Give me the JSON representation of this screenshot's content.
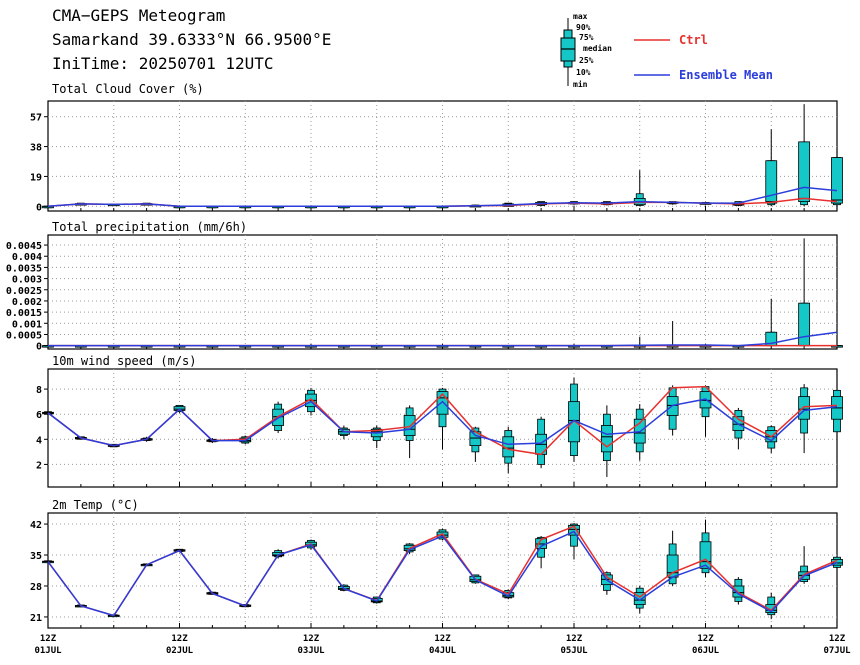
{
  "header": {
    "title": "CMA−GEPS Meteogram",
    "location": "Samarkand 39.6333°N 66.9500°E",
    "initime": "IniTime: 20250701 12UTC"
  },
  "boxlegend": {
    "max": "max",
    "p90": "90%",
    "p75": "75%",
    "median": "median",
    "p25": "25%",
    "p10": "10%",
    "min": "min"
  },
  "legend": [
    {
      "name": "Ctrl",
      "color": "#e8312f"
    },
    {
      "name": "Ensemble Mean",
      "color": "#2b3ddb"
    }
  ],
  "colors": {
    "box": "#16c7c7",
    "ctrl": "#e8312f",
    "mean": "#2b3ddb",
    "grid": "#9a9a9a"
  },
  "xaxis": {
    "labels": [
      [
        "12Z",
        "01JUL"
      ],
      [
        "12Z",
        "02JUL"
      ],
      [
        "12Z",
        "03JUL"
      ],
      [
        "12Z",
        "04JUL"
      ],
      [
        "12Z",
        "05JUL"
      ],
      [
        "12Z",
        "06JUL"
      ],
      [
        "12Z",
        "07JUL"
      ]
    ]
  },
  "chart_data": [
    {
      "type": "box",
      "title": "Total Cloud Cover (%)",
      "ylim": [
        -3,
        67
      ],
      "yticks": [
        0,
        19,
        38,
        57
      ],
      "ticklabels": [
        "0",
        "19",
        "38",
        "57"
      ],
      "x": [
        0,
        1,
        2,
        3,
        4,
        5,
        6,
        7,
        8,
        9,
        10,
        11,
        12,
        13,
        14,
        15,
        16,
        17,
        18,
        19,
        20,
        21,
        22,
        23,
        24
      ],
      "ctrl": [
        0,
        1.5,
        1.2,
        1.5,
        0,
        0,
        0,
        0,
        0,
        0,
        0,
        0,
        0,
        0.3,
        0.5,
        1.5,
        2,
        1.5,
        2.5,
        2.5,
        2,
        1.5,
        2.5,
        5,
        3
      ],
      "mean": [
        0,
        1.5,
        1.2,
        1.5,
        0,
        0,
        0,
        0,
        0,
        0,
        0,
        0,
        0,
        0.3,
        0.8,
        1.8,
        2.2,
        2,
        3,
        2.5,
        2,
        2,
        7,
        12,
        10
      ],
      "boxes": [
        [
          0,
          0,
          0,
          0,
          0,
          0,
          0
        ],
        [
          1,
          1,
          1.3,
          1.5,
          1.7,
          2,
          2
        ],
        [
          1,
          1,
          1.1,
          1.2,
          1.3,
          1.4,
          1.4
        ],
        [
          1,
          1,
          1.3,
          1.5,
          1.7,
          2,
          2
        ],
        [
          0,
          0,
          0,
          0,
          0,
          0,
          0
        ],
        [
          0,
          0,
          0,
          0,
          0,
          0,
          0
        ],
        [
          0,
          0,
          0,
          0,
          0,
          0,
          0
        ],
        [
          0,
          0,
          0,
          0,
          0,
          0,
          0
        ],
        [
          0,
          0,
          0,
          0,
          0,
          0,
          0
        ],
        [
          0,
          0,
          0,
          0,
          0,
          0,
          0
        ],
        [
          0,
          0,
          0,
          0,
          0,
          0,
          0
        ],
        [
          0,
          0,
          0,
          0,
          0,
          0,
          0
        ],
        [
          0,
          0,
          0,
          0,
          0,
          0,
          0
        ],
        [
          0,
          0,
          0,
          0.2,
          0.5,
          0.8,
          1
        ],
        [
          0,
          0,
          0,
          0.3,
          1.5,
          2,
          2
        ],
        [
          0,
          0.5,
          1,
          1.5,
          2.5,
          3,
          3
        ],
        [
          1,
          1.5,
          1.8,
          2,
          2.5,
          3,
          3
        ],
        [
          0.5,
          1,
          1.2,
          1.5,
          2.5,
          3,
          3
        ],
        [
          0,
          0.5,
          1,
          2.5,
          5,
          8,
          23
        ],
        [
          1,
          1.5,
          2,
          2.5,
          2.8,
          3,
          3
        ],
        [
          1,
          1.5,
          1.8,
          2,
          2.2,
          2.5,
          2.5
        ],
        [
          0,
          0.5,
          0.8,
          1,
          2,
          3,
          3
        ],
        [
          0,
          1,
          2,
          3,
          29,
          29,
          49
        ],
        [
          0,
          1,
          3,
          5,
          41,
          41,
          65
        ],
        [
          0,
          1,
          2,
          4,
          31,
          31,
          32
        ]
      ]
    },
    {
      "type": "box",
      "title": "Total precipitation (mm/6h)",
      "ylim": [
        -0.00015,
        0.00495
      ],
      "yticks": [
        0,
        0.0005,
        0.001,
        0.0015,
        0.002,
        0.0025,
        0.003,
        0.0035,
        0.004,
        0.0045
      ],
      "ticklabels": [
        "0",
        "0.0005",
        "0.001",
        "0.0015",
        "0.002",
        "0.0025",
        "0.003",
        "0.0035",
        "0.004",
        "0.0045"
      ],
      "x": [
        0,
        1,
        2,
        3,
        4,
        5,
        6,
        7,
        8,
        9,
        10,
        11,
        12,
        13,
        14,
        15,
        16,
        17,
        18,
        19,
        20,
        21,
        22,
        23,
        24
      ],
      "ctrl": [
        0,
        0,
        0,
        0,
        0,
        0,
        0,
        0,
        0,
        0,
        0,
        0,
        0,
        0,
        0,
        0,
        0,
        0,
        0,
        0,
        0,
        0,
        0,
        0,
        0
      ],
      "mean": [
        0,
        0,
        0,
        0,
        0,
        0,
        0,
        0,
        0,
        0,
        0,
        0,
        0,
        0,
        0,
        0,
        0,
        0,
        2e-05,
        3e-05,
        3e-05,
        0,
        0.0001,
        0.0004,
        0.0006
      ],
      "boxes": [
        [
          0,
          0,
          0,
          0,
          0,
          0,
          0
        ],
        [
          0,
          0,
          0,
          0,
          0,
          0,
          0
        ],
        [
          0,
          0,
          0,
          0,
          0,
          0,
          0
        ],
        [
          0,
          0,
          0,
          0,
          0,
          0,
          0
        ],
        [
          0,
          0,
          0,
          0,
          0,
          0,
          0
        ],
        [
          0,
          0,
          0,
          0,
          0,
          0,
          0
        ],
        [
          0,
          0,
          0,
          0,
          0,
          0,
          0
        ],
        [
          0,
          0,
          0,
          0,
          0,
          0,
          0
        ],
        [
          0,
          0,
          0,
          0,
          0,
          0,
          0
        ],
        [
          0,
          0,
          0,
          0,
          0,
          0,
          0
        ],
        [
          0,
          0,
          0,
          0,
          0,
          0,
          0
        ],
        [
          0,
          0,
          0,
          0,
          0,
          0,
          0
        ],
        [
          0,
          0,
          0,
          0,
          0,
          0,
          0
        ],
        [
          0,
          0,
          0,
          0,
          0,
          0,
          0
        ],
        [
          0,
          0,
          0,
          0,
          0,
          0,
          0
        ],
        [
          0,
          0,
          0,
          0,
          0,
          0,
          0
        ],
        [
          0,
          0,
          0,
          0,
          0,
          0,
          0
        ],
        [
          0,
          0,
          0,
          0,
          0,
          0,
          0
        ],
        [
          0,
          0,
          0,
          0,
          0,
          0,
          0.0004
        ],
        [
          0,
          0,
          0,
          0,
          0,
          0,
          0.0011
        ],
        [
          0,
          0,
          0,
          0,
          0,
          0,
          0
        ],
        [
          0,
          0,
          0,
          0,
          0,
          0,
          0
        ],
        [
          0,
          0,
          0,
          0,
          0.0006,
          0.0006,
          0.0021
        ],
        [
          0,
          0,
          0,
          0,
          0.0019,
          0.0019,
          0.0048
        ],
        [
          0,
          0,
          0,
          0,
          0,
          0,
          0
        ]
      ]
    },
    {
      "type": "box",
      "title": "10m wind speed (m/s)",
      "ylim": [
        0.2,
        9.6
      ],
      "yticks": [
        2,
        4,
        6,
        8
      ],
      "ticklabels": [
        "2",
        "4",
        "6",
        "8"
      ],
      "x": [
        0,
        1,
        2,
        3,
        4,
        5,
        6,
        7,
        8,
        9,
        10,
        11,
        12,
        13,
        14,
        15,
        16,
        17,
        18,
        19,
        20,
        21,
        22,
        23,
        24
      ],
      "ctrl": [
        6.1,
        4.1,
        3.5,
        4.0,
        6.4,
        3.9,
        4.0,
        5.8,
        7.2,
        4.6,
        4.7,
        5.0,
        7.6,
        4.6,
        3.2,
        2.8,
        5.5,
        3.4,
        5.3,
        8.1,
        8.2,
        5.6,
        4.2,
        6.6,
        6.7
      ],
      "mean": [
        6.1,
        4.1,
        3.5,
        4.0,
        6.4,
        3.9,
        3.9,
        5.7,
        7.0,
        4.6,
        4.5,
        4.8,
        7.0,
        4.3,
        3.6,
        3.7,
        5.5,
        4.4,
        4.6,
        6.7,
        7.2,
        5.2,
        3.9,
        6.3,
        6.6
      ],
      "boxes": [
        [
          6,
          6,
          6.05,
          6.1,
          6.15,
          6.2,
          6.2
        ],
        [
          4,
          4,
          4.05,
          4.1,
          4.15,
          4.2,
          4.2
        ],
        [
          3.4,
          3.4,
          3.45,
          3.5,
          3.55,
          3.6,
          3.6
        ],
        [
          3.8,
          3.9,
          3.95,
          4.0,
          4.05,
          4.1,
          4.2
        ],
        [
          6.1,
          6.2,
          6.3,
          6.4,
          6.6,
          6.7,
          6.7
        ],
        [
          3.7,
          3.8,
          3.85,
          3.9,
          3.95,
          4.0,
          4.1
        ],
        [
          3.6,
          3.7,
          3.8,
          3.9,
          4.1,
          4.2,
          4.3
        ],
        [
          4.5,
          4.7,
          5.1,
          5.8,
          6.4,
          6.8,
          7
        ],
        [
          5.9,
          6.2,
          6.6,
          7.1,
          7.6,
          7.9,
          8.1
        ],
        [
          4,
          4.3,
          4.4,
          4.6,
          4.8,
          4.9,
          5.1
        ],
        [
          3.3,
          3.9,
          4.2,
          4.6,
          4.8,
          4.9,
          5.1
        ],
        [
          2.5,
          3.9,
          4.3,
          4.8,
          5.9,
          6.5,
          6.7
        ],
        [
          3.2,
          5.0,
          6.0,
          7.3,
          7.8,
          8.0,
          8.1
        ],
        [
          2.2,
          3.0,
          3.5,
          4.1,
          4.6,
          4.9,
          5.0
        ],
        [
          1.3,
          2.1,
          2.6,
          3.3,
          4.2,
          4.7,
          5.0
        ],
        [
          1.7,
          2.0,
          2.8,
          3.6,
          4.4,
          5.6,
          5.8
        ],
        [
          2.2,
          2.7,
          3.8,
          5.5,
          7.0,
          8.4,
          8.9
        ],
        [
          1.0,
          2.3,
          3.0,
          4.2,
          5.1,
          6.0,
          6.7
        ],
        [
          2.3,
          3.0,
          3.7,
          4.5,
          5.6,
          6.4,
          6.8
        ],
        [
          4.3,
          4.8,
          5.9,
          6.7,
          7.4,
          8.1,
          8.3
        ],
        [
          4.2,
          5.8,
          6.5,
          7.1,
          7.8,
          8.2,
          8.3
        ],
        [
          3.2,
          4.1,
          4.7,
          5.2,
          5.8,
          6.3,
          6.5
        ],
        [
          2.9,
          3.3,
          3.8,
          4.2,
          4.7,
          5.0,
          5.1
        ],
        [
          2.9,
          4.5,
          5.6,
          6.4,
          7.4,
          8.1,
          8.4
        ],
        [
          3.1,
          4.6,
          5.6,
          6.5,
          7.4,
          7.9,
          8.0
        ]
      ]
    },
    {
      "type": "box",
      "title": "2m Temp (°C)",
      "ylim": [
        18.5,
        44.5
      ],
      "yticks": [
        21,
        28,
        35,
        42
      ],
      "ticklabels": [
        "21",
        "28",
        "35",
        "42"
      ],
      "x": [
        0,
        1,
        2,
        3,
        4,
        5,
        6,
        7,
        8,
        9,
        10,
        11,
        12,
        13,
        14,
        15,
        16,
        17,
        18,
        19,
        20,
        21,
        22,
        23,
        24
      ],
      "ctrl": [
        33.5,
        23.5,
        21.3,
        32.8,
        36.0,
        26.3,
        23.5,
        35.0,
        37.5,
        27.4,
        24.7,
        36.5,
        39.8,
        29.5,
        26.2,
        38.5,
        41.5,
        30.0,
        25.5,
        31.0,
        34.0,
        26.5,
        22.5,
        30.6,
        33.8
      ],
      "mean": [
        33.5,
        23.5,
        21.3,
        32.8,
        36.0,
        26.3,
        23.5,
        35.0,
        37.3,
        27.4,
        24.6,
        36.2,
        39.3,
        29.4,
        25.7,
        37.0,
        40.3,
        29.3,
        24.8,
        30.0,
        32.7,
        26.2,
        22.2,
        30.3,
        33.3
      ],
      "boxes": [
        [
          33.3,
          33.3,
          33.4,
          33.5,
          33.6,
          33.7,
          33.7
        ],
        [
          23.3,
          23.3,
          23.4,
          23.5,
          23.6,
          23.7,
          23.7
        ],
        [
          21.1,
          21.1,
          21.2,
          21.3,
          21.4,
          21.5,
          21.5
        ],
        [
          32.5,
          32.6,
          32.7,
          32.8,
          32.9,
          33.0,
          33.1
        ],
        [
          35.6,
          35.8,
          35.9,
          36.0,
          36.2,
          36.3,
          36.4
        ],
        [
          26.0,
          26.1,
          26.2,
          26.3,
          26.5,
          26.6,
          26.7
        ],
        [
          23.2,
          23.3,
          23.4,
          23.5,
          23.7,
          23.8,
          23.9
        ],
        [
          34.2,
          34.6,
          34.8,
          35.0,
          35.6,
          36.0,
          36.3
        ],
        [
          36.2,
          36.6,
          37.0,
          37.3,
          37.9,
          38.3,
          38.5
        ],
        [
          26.8,
          27.0,
          27.2,
          27.4,
          27.9,
          28.2,
          28.4
        ],
        [
          24.0,
          24.2,
          24.4,
          24.6,
          25.2,
          25.5,
          25.6
        ],
        [
          35.2,
          35.7,
          36.0,
          36.4,
          37.2,
          37.5,
          37.7
        ],
        [
          38.3,
          38.6,
          39.0,
          39.5,
          40.2,
          40.7,
          41.0
        ],
        [
          28.5,
          28.7,
          29.0,
          29.4,
          30.2,
          30.5,
          30.6
        ],
        [
          25.0,
          25.3,
          25.5,
          25.8,
          26.5,
          27.0,
          27.2
        ],
        [
          32.0,
          34.5,
          36.5,
          37.5,
          38.7,
          39.0,
          39.3
        ],
        [
          34.0,
          37.0,
          39.5,
          40.8,
          41.7,
          42.0,
          42.2
        ],
        [
          26.0,
          27.0,
          28.3,
          29.5,
          30.5,
          31.0,
          31.3
        ],
        [
          21.8,
          23.0,
          23.8,
          24.8,
          26.5,
          27.5,
          28.0
        ],
        [
          28.0,
          28.5,
          30.0,
          31.0,
          35.0,
          37.5,
          40.5
        ],
        [
          30.0,
          31.0,
          32.0,
          33.5,
          38.0,
          40.0,
          43.0
        ],
        [
          23.8,
          24.5,
          25.5,
          26.5,
          28.0,
          29.5,
          30.0
        ],
        [
          20.5,
          21.5,
          22.0,
          22.5,
          23.8,
          25.5,
          26.5
        ],
        [
          28.5,
          29.0,
          29.5,
          30.4,
          31.2,
          32.5,
          37.0
        ],
        [
          31.5,
          32.2,
          32.7,
          33.2,
          34.0,
          34.5,
          34.8
        ]
      ]
    }
  ]
}
